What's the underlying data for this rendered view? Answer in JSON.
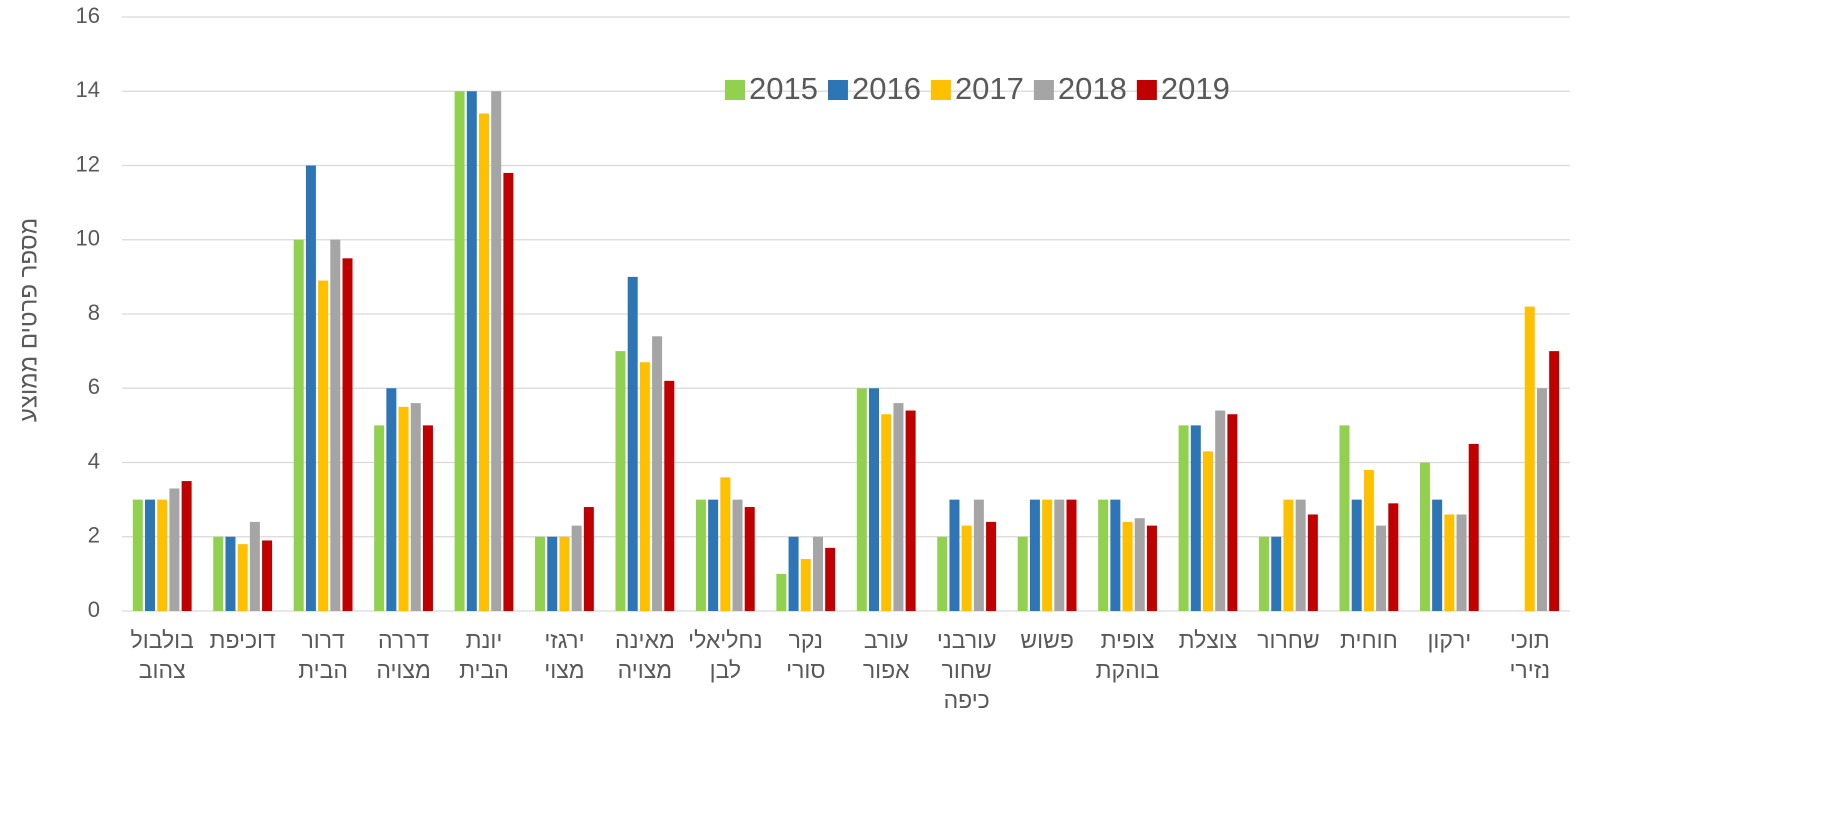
{
  "chart_data": {
    "type": "bar",
    "y_label": "מספר פרטים ממוצע",
    "categories": [
      [
        "בולבול",
        "צהוב"
      ],
      [
        "דוכיפת"
      ],
      [
        "דרור",
        "הבית"
      ],
      [
        "דררה",
        "מצויה"
      ],
      [
        "יונת",
        "הבית"
      ],
      [
        "ירגזי",
        "מצוי"
      ],
      [
        "מאינה",
        "מצויה"
      ],
      [
        "נחליאלי",
        "לבן"
      ],
      [
        "נקר",
        "סורי"
      ],
      [
        "עורב",
        "אפור"
      ],
      [
        "עורבני",
        "שחור",
        "כיפה"
      ],
      [
        "פשוש"
      ],
      [
        "צופית",
        "בוהקת"
      ],
      [
        "צוצלת"
      ],
      [
        "שחרור"
      ],
      [
        "חוחית"
      ],
      [
        "ירקון"
      ],
      [
        "תוכי",
        "נזירי"
      ]
    ],
    "series": [
      {
        "name": "2015",
        "color": "#92d050",
        "values": [
          3,
          2,
          10,
          5,
          14,
          2,
          7,
          3,
          1,
          6,
          2,
          2,
          3,
          5,
          2,
          5,
          4,
          null
        ]
      },
      {
        "name": "2016",
        "color": "#2e75b6",
        "values": [
          3,
          2,
          12,
          6,
          14,
          2,
          9,
          3,
          2,
          6,
          3,
          3,
          3,
          5,
          2,
          3,
          3,
          null
        ]
      },
      {
        "name": "2017",
        "color": "#ffc000",
        "values": [
          3,
          1.8,
          8.9,
          5.5,
          13.4,
          2,
          6.7,
          3.6,
          1.4,
          5.3,
          2.3,
          3,
          2.4,
          4.3,
          3,
          3.8,
          2.6,
          8.2
        ]
      },
      {
        "name": "2018",
        "color": "#a5a5a5",
        "values": [
          3.3,
          2.4,
          10,
          5.6,
          14,
          2.3,
          7.4,
          3,
          2,
          5.6,
          3,
          3,
          2.5,
          5.4,
          3,
          2.3,
          2.6,
          6
        ]
      },
      {
        "name": "2019",
        "color": "#c00000",
        "values": [
          3.5,
          1.9,
          9.5,
          5,
          11.8,
          2.8,
          6.2,
          2.8,
          1.7,
          5.4,
          2.4,
          3,
          2.3,
          5.3,
          2.6,
          2.9,
          4.5,
          7
        ]
      }
    ],
    "ylim": [
      0,
      16
    ],
    "yticks": [
      0,
      2,
      4,
      6,
      8,
      10,
      12,
      14,
      16
    ],
    "grid": true,
    "legend": "top"
  }
}
